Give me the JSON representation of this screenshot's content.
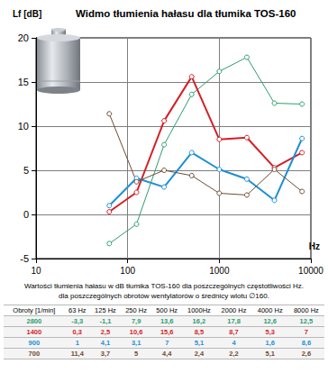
{
  "chart_data": {
    "type": "line",
    "title": "Widmo tłumienia hałasu dla tłumika TOS-160",
    "xlabel": "Hz",
    "ylabel": "Lf [dB]",
    "x": [
      63,
      125,
      250,
      500,
      1000,
      2000,
      4000,
      8000
    ],
    "series": [
      {
        "name": "2800",
        "color": "#2a9d6f",
        "values": [
          -3.3,
          -1.1,
          7.9,
          13.6,
          16.2,
          17.8,
          12.6,
          12.5
        ]
      },
      {
        "name": "1400",
        "color": "#d41f26",
        "values": [
          0.3,
          2.5,
          10.6,
          15.6,
          8.5,
          8.7,
          5.3,
          7
        ]
      },
      {
        "name": "900",
        "color": "#1c8fd6",
        "values": [
          1,
          4.1,
          3.1,
          7,
          5.1,
          4,
          1.6,
          8.6
        ]
      },
      {
        "name": "700",
        "color": "#6e4b33",
        "values": [
          11.4,
          3.7,
          5,
          4.4,
          2.4,
          2.2,
          5.1,
          2.6
        ]
      }
    ],
    "xlim": [
      10,
      10000
    ],
    "xticks": [
      10,
      100,
      1000,
      10000
    ],
    "ylim": [
      -5,
      20
    ],
    "yticks": [
      -5,
      0,
      5,
      10,
      15,
      20
    ],
    "log": "x",
    "grid": true,
    "marker": "circle"
  },
  "table": {
    "caption": [
      "Wartości tłumienia hałasu w dB tłumika TOS-160 dla poszczególnych częstotliwości Hz.",
      "dla poszczególnych obrotów wentylatorów o średnicy wlotu ∅160."
    ],
    "header": [
      "Obroty [1/min]",
      "63 Hz",
      "125 Hz",
      "250 Hz",
      "500 Hz",
      "1000Hz",
      "2000 Hz",
      "4000 Hz",
      "8000 Hz"
    ],
    "rows": [
      [
        "2800",
        "-3,3",
        "-1,1",
        "7,9",
        "13,6",
        "16,2",
        "17,8",
        "12,6",
        "12,5"
      ],
      [
        "1400",
        "0,3",
        "2,5",
        "10,6",
        "15,6",
        "8,5",
        "8,7",
        "5,3",
        "7"
      ],
      [
        "900",
        "1",
        "4,1",
        "3,1",
        "7",
        "5,1",
        "4",
        "1,6",
        "8,6"
      ],
      [
        "700",
        "11,4",
        "3,7",
        "5",
        "4,4",
        "2,4",
        "2,2",
        "5,1",
        "2,6"
      ]
    ]
  }
}
